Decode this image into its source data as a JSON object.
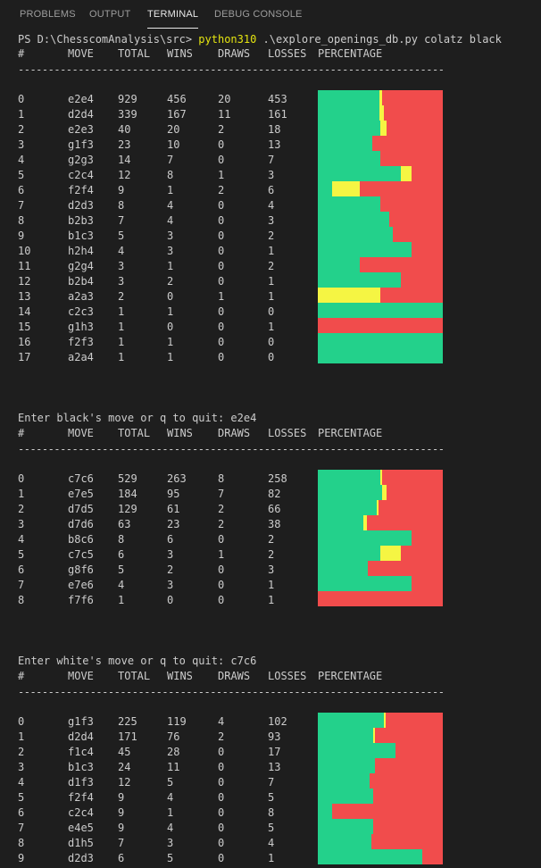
{
  "panel": {
    "tabs": [
      {
        "label": "PROBLEMS"
      },
      {
        "label": "OUTPUT"
      },
      {
        "label": "TERMINAL",
        "active": true
      },
      {
        "label": "DEBUG CONSOLE"
      }
    ]
  },
  "terminal": {
    "prompt": "PS D:\\ChesscomAnalysis\\src> ",
    "command": "python310",
    "args": " .\\explore_openings_db.py colatz black",
    "colors": {
      "win": "#23d18b",
      "draw": "#f5f543",
      "loss": "#f14c4c",
      "command": "#e5e510"
    },
    "headers": [
      "#",
      "MOVE",
      "TOTAL",
      "WINS",
      "DRAWS",
      "LOSSES",
      "PERCENTAGE"
    ],
    "separator": "----------------------------------------------------------------------------------",
    "tables": [
      {
        "prompt_line": "",
        "rows": [
          [
            "0",
            "e2e4",
            "929",
            "456",
            "20",
            "453"
          ],
          [
            "1",
            "d2d4",
            "339",
            "167",
            "11",
            "161"
          ],
          [
            "2",
            "e2e3",
            "40",
            "20",
            "2",
            "18"
          ],
          [
            "3",
            "g1f3",
            "23",
            "10",
            "0",
            "13"
          ],
          [
            "4",
            "g2g3",
            "14",
            "7",
            "0",
            "7"
          ],
          [
            "5",
            "c2c4",
            "12",
            "8",
            "1",
            "3"
          ],
          [
            "6",
            "f2f4",
            "9",
            "1",
            "2",
            "6"
          ],
          [
            "7",
            "d2d3",
            "8",
            "4",
            "0",
            "4"
          ],
          [
            "8",
            "b2b3",
            "7",
            "4",
            "0",
            "3"
          ],
          [
            "9",
            "b1c3",
            "5",
            "3",
            "0",
            "2"
          ],
          [
            "10",
            "h2h4",
            "4",
            "3",
            "0",
            "1"
          ],
          [
            "11",
            "g2g4",
            "3",
            "1",
            "0",
            "2"
          ],
          [
            "12",
            "b2b4",
            "3",
            "2",
            "0",
            "1"
          ],
          [
            "13",
            "a2a3",
            "2",
            "0",
            "1",
            "1"
          ],
          [
            "14",
            "c2c3",
            "1",
            "1",
            "0",
            "0"
          ],
          [
            "15",
            "g1h3",
            "1",
            "0",
            "0",
            "1"
          ],
          [
            "16",
            "f2f3",
            "1",
            "1",
            "0",
            "0"
          ],
          [
            "17",
            "a2a4",
            "1",
            "1",
            "0",
            "0"
          ]
        ]
      },
      {
        "prompt_line": "Enter black's move or q to quit: e2e4",
        "rows": [
          [
            "0",
            "c7c6",
            "529",
            "263",
            "8",
            "258"
          ],
          [
            "1",
            "e7e5",
            "184",
            "95",
            "7",
            "82"
          ],
          [
            "2",
            "d7d5",
            "129",
            "61",
            "2",
            "66"
          ],
          [
            "3",
            "d7d6",
            "63",
            "23",
            "2",
            "38"
          ],
          [
            "4",
            "b8c6",
            "8",
            "6",
            "0",
            "2"
          ],
          [
            "5",
            "c7c5",
            "6",
            "3",
            "1",
            "2"
          ],
          [
            "6",
            "g8f6",
            "5",
            "2",
            "0",
            "3"
          ],
          [
            "7",
            "e7e6",
            "4",
            "3",
            "0",
            "1"
          ],
          [
            "8",
            "f7f6",
            "1",
            "0",
            "0",
            "1"
          ]
        ]
      },
      {
        "prompt_line": "Enter white's move or q to quit: c7c6",
        "rows": [
          [
            "0",
            "g1f3",
            "225",
            "119",
            "4",
            "102"
          ],
          [
            "1",
            "d2d4",
            "171",
            "76",
            "2",
            "93"
          ],
          [
            "2",
            "f1c4",
            "45",
            "28",
            "0",
            "17"
          ],
          [
            "3",
            "b1c3",
            "24",
            "11",
            "0",
            "13"
          ],
          [
            "4",
            "d1f3",
            "12",
            "5",
            "0",
            "7"
          ],
          [
            "5",
            "f2f4",
            "9",
            "4",
            "0",
            "5"
          ],
          [
            "6",
            "c2c4",
            "9",
            "1",
            "0",
            "8"
          ],
          [
            "7",
            "e4e5",
            "9",
            "4",
            "0",
            "5"
          ],
          [
            "8",
            "d1h5",
            "7",
            "3",
            "0",
            "4"
          ],
          [
            "9",
            "d2d3",
            "6",
            "5",
            "0",
            "1"
          ]
        ]
      }
    ]
  }
}
